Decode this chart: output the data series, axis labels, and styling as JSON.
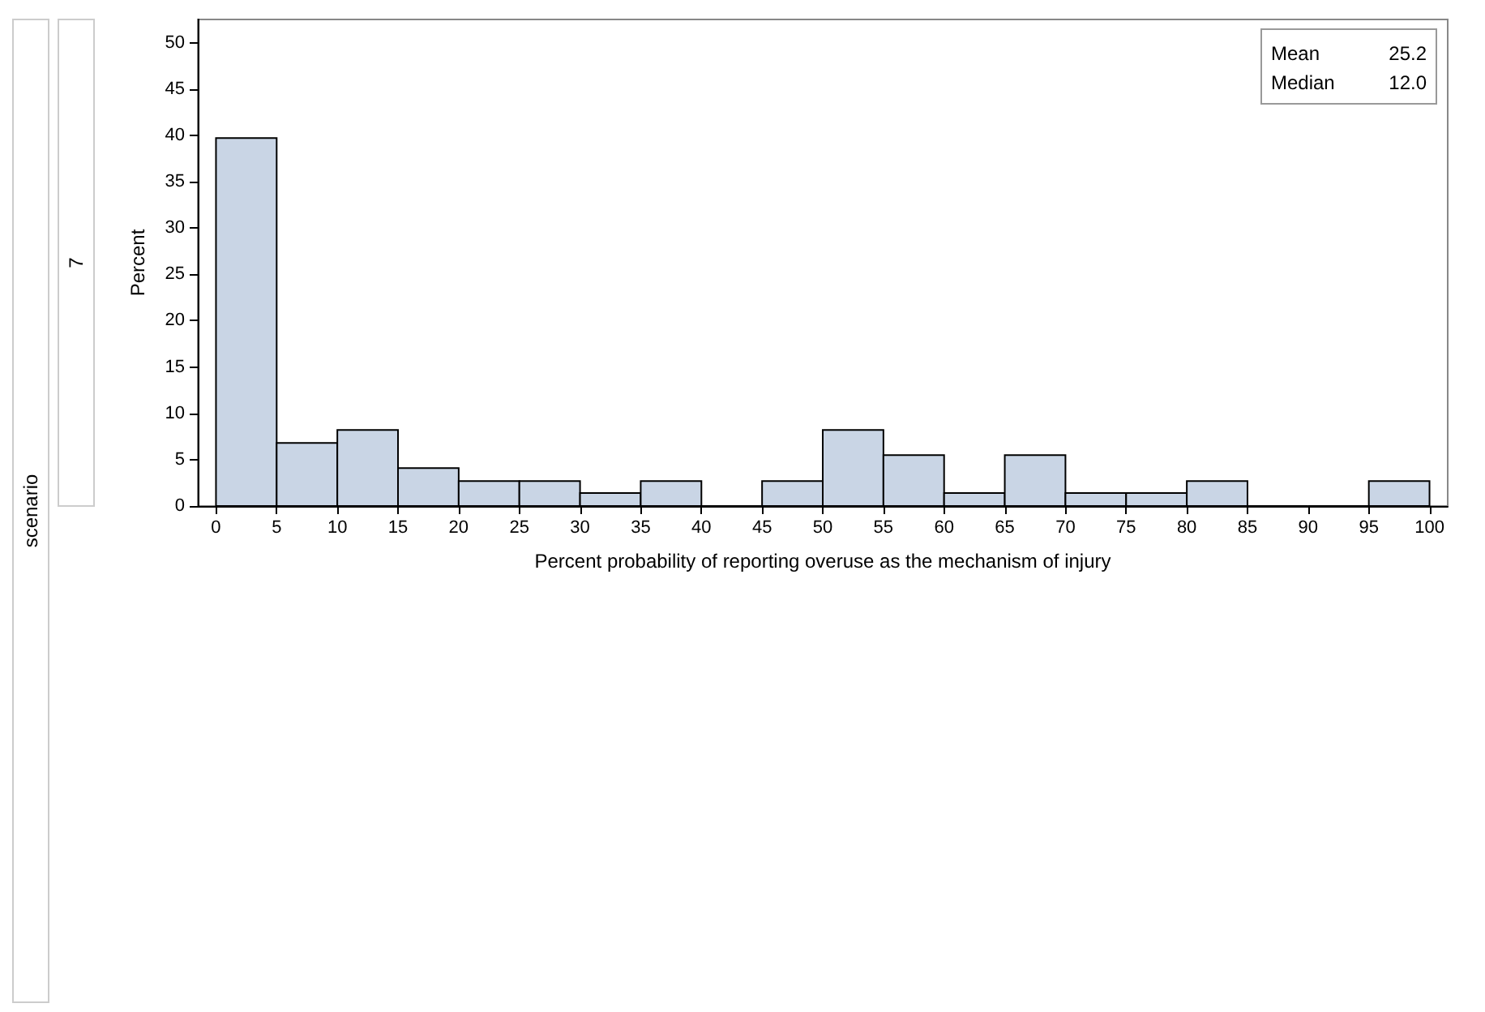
{
  "chart_data": {
    "type": "histogram",
    "xlabel": "Percent probability of reporting overuse as the mechanism of injury",
    "ylabel": "Percent",
    "bins": [
      0,
      5,
      10,
      15,
      20,
      25,
      30,
      35,
      40,
      45,
      50,
      55,
      60,
      65,
      70,
      75,
      80,
      85,
      90,
      95,
      100
    ],
    "values": [
      39.7,
      6.8,
      8.2,
      4.1,
      2.7,
      2.7,
      1.4,
      2.7,
      0,
      2.7,
      8.2,
      5.5,
      1.4,
      5.5,
      1.4,
      1.4,
      2.7,
      0,
      0,
      2.7
    ],
    "color": "#c9d5e5",
    "xlim": [
      -1.5,
      101.5
    ],
    "xticks": [
      0,
      5,
      10,
      15,
      20,
      25,
      30,
      35,
      40,
      45,
      50,
      55,
      60,
      65,
      70,
      75,
      80,
      85,
      90,
      95,
      100
    ],
    "ylim": [
      0,
      52.5
    ],
    "yticks": [
      0,
      5,
      10,
      15,
      20,
      25,
      30,
      35,
      40,
      45,
      50
    ],
    "grid": false,
    "annotations": [
      "Mean",
      "25.2",
      "Median",
      "12.0",
      "scenario",
      "7"
    ]
  }
}
